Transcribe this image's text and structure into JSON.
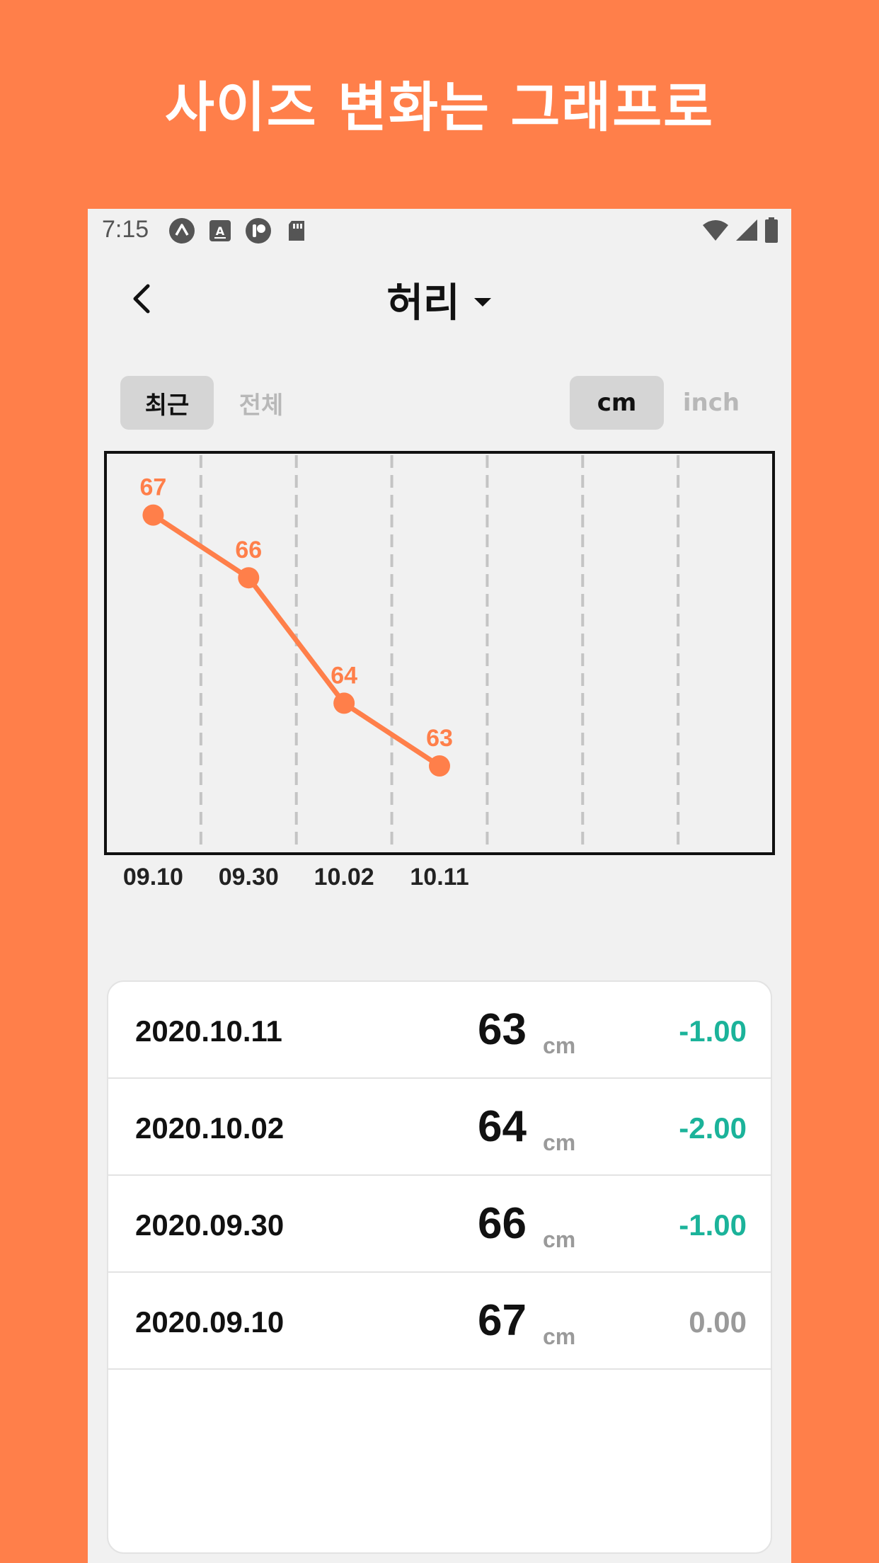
{
  "promo": {
    "title": "사이즈 변화는 그래프로"
  },
  "status_bar": {
    "time": "7:15"
  },
  "header": {
    "title": "허리"
  },
  "period_tabs": [
    {
      "label": "최근",
      "active": true
    },
    {
      "label": "전체",
      "active": false
    }
  ],
  "unit_tabs": [
    {
      "label": "cm",
      "active": true
    },
    {
      "label": "inch",
      "active": false
    }
  ],
  "colors": {
    "accent": "#FF7F4A",
    "decrease": "#1BB39A",
    "neutral": "#9A9A9A"
  },
  "chart_data": {
    "type": "line",
    "x": [
      "09.10",
      "09.30",
      "10.02",
      "10.11"
    ],
    "series": [
      {
        "values": [
          67,
          66,
          64,
          63
        ]
      }
    ],
    "data_labels": [
      "67",
      "66",
      "64",
      "63"
    ],
    "slots": 7,
    "ylim": [
      61.6,
      68
    ]
  },
  "records": [
    {
      "date": "2020.10.11",
      "value": "63",
      "unit": "cm",
      "change": "-1.00",
      "trend": "decrease"
    },
    {
      "date": "2020.10.02",
      "value": "64",
      "unit": "cm",
      "change": "-2.00",
      "trend": "decrease"
    },
    {
      "date": "2020.09.30",
      "value": "66",
      "unit": "cm",
      "change": "-1.00",
      "trend": "decrease"
    },
    {
      "date": "2020.09.10",
      "value": "67",
      "unit": "cm",
      "change": "0.00",
      "trend": "neutral"
    }
  ]
}
